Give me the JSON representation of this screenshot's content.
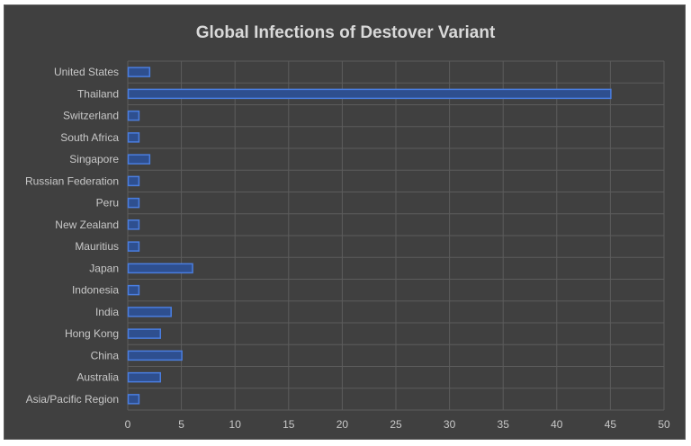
{
  "chart_data": {
    "type": "bar",
    "orientation": "horizontal",
    "title": "Global Infections of Destover Variant",
    "categories": [
      "United States",
      "Thailand",
      "Switzerland",
      "South Africa",
      "Singapore",
      "Russian Federation",
      "Peru",
      "New Zealand",
      "Mauritius",
      "Japan",
      "Indonesia",
      "India",
      "Hong Kong",
      "China",
      "Australia",
      "Asia/Pacific Region"
    ],
    "values": [
      2,
      45,
      1,
      1,
      2,
      1,
      1,
      1,
      1,
      6,
      1,
      4,
      3,
      5,
      3,
      1
    ],
    "xlim": [
      0,
      50
    ],
    "xticks": [
      "0",
      "5",
      "10",
      "15",
      "20",
      "25",
      "30",
      "35",
      "40",
      "45",
      "50"
    ],
    "grid": true,
    "legend": "none",
    "colors": {
      "background": "#404040",
      "bar_fill": "#2e4f8f",
      "bar_edge": "#4a7ee0",
      "grid": "#5c5c5c",
      "text": "#d9d9d9"
    }
  }
}
